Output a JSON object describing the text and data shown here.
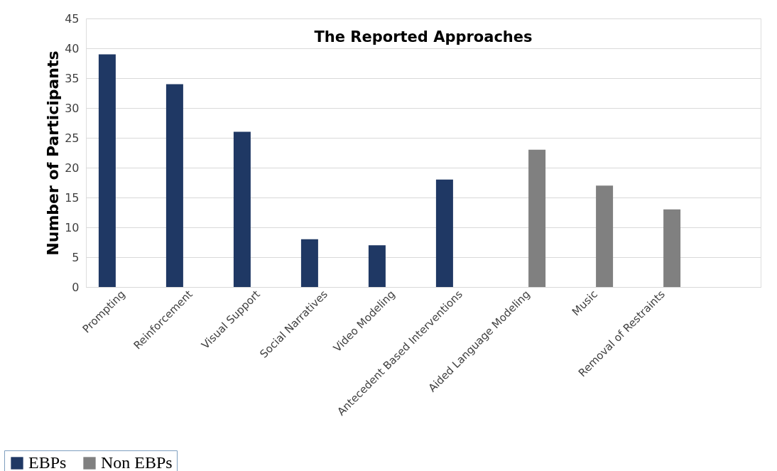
{
  "chart_data": {
    "type": "bar",
    "title": "The Reported Approaches",
    "ylabel": "Number of Participants",
    "categories": [
      "Prompting",
      "Reinforcement",
      "Visual Support",
      "Social Narratives",
      "Video Modeling",
      "Antecedent Based Interventions",
      "Aided Language Modeling",
      "Music",
      "Removal of Restraints",
      null
    ],
    "series": [
      {
        "name": "EBPs",
        "color": "#1f3864",
        "values": [
          39,
          34,
          26,
          8,
          7,
          18,
          null,
          null,
          null,
          null
        ]
      },
      {
        "name": "Non EBPs",
        "color": "#808080",
        "values": [
          null,
          null,
          null,
          null,
          null,
          null,
          23,
          17,
          13,
          null
        ]
      }
    ],
    "ylim": [
      0,
      45
    ],
    "yticks": [
      0,
      5,
      10,
      15,
      20,
      25,
      30,
      35,
      40,
      45
    ],
    "grid": "y",
    "legend": "bottom left"
  }
}
